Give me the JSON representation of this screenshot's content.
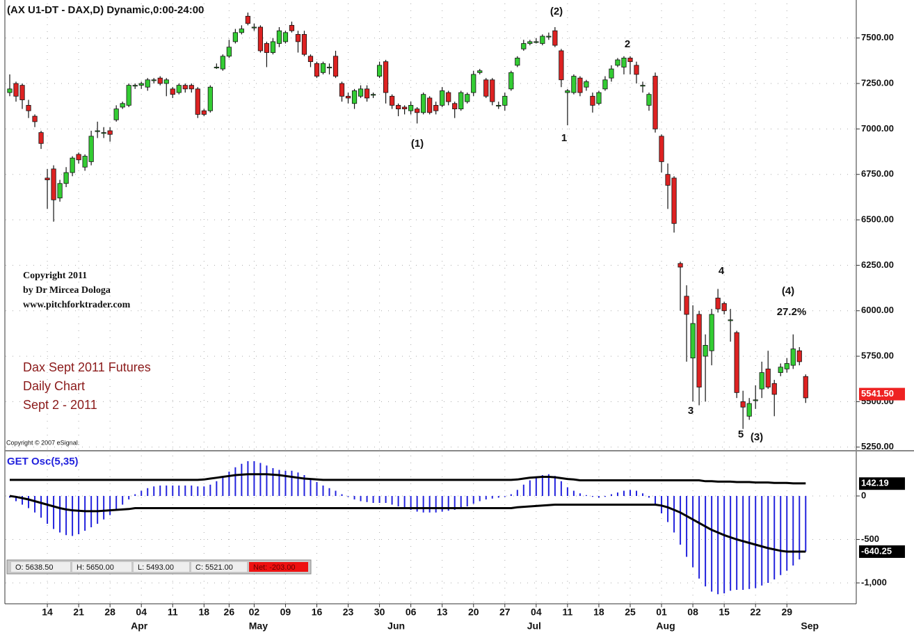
{
  "chart_data": [
    {
      "type": "candlestick",
      "title": "(AX U1-DT - DAX,D) Dynamic,0:00-24:00",
      "categories": [
        null,
        null,
        null,
        null,
        null,
        null,
        "14",
        null,
        null,
        null,
        null,
        "21",
        null,
        null,
        null,
        null,
        "28",
        null,
        null,
        null,
        null,
        "04",
        null,
        null,
        null,
        null,
        "11",
        null,
        null,
        null,
        null,
        "18",
        null,
        null,
        null,
        "26",
        null,
        null,
        null,
        "02",
        null,
        null,
        null,
        null,
        "09",
        null,
        null,
        null,
        null,
        "16",
        null,
        null,
        null,
        null,
        "23",
        null,
        null,
        null,
        null,
        "30",
        null,
        null,
        null,
        null,
        "06",
        null,
        null,
        null,
        null,
        "13",
        null,
        null,
        null,
        null,
        "20",
        null,
        null,
        null,
        null,
        "27",
        null,
        null,
        null,
        null,
        "04",
        null,
        null,
        null,
        null,
        "11",
        null,
        null,
        null,
        null,
        "18",
        null,
        null,
        null,
        null,
        "25",
        null,
        null,
        null,
        null,
        "01",
        null,
        null,
        null,
        null,
        "08",
        null,
        null,
        null,
        null,
        "15",
        null,
        null,
        null,
        null,
        "22",
        null,
        null,
        null,
        null,
        "29",
        null,
        null,
        null
      ],
      "months": [
        "Apr",
        "May",
        "Jun",
        "Jul",
        "Aug",
        "Sep"
      ],
      "open": [
        7200,
        7250,
        7240,
        7130,
        7070,
        6980,
        6730,
        6780,
        6620,
        6700,
        6760,
        6860,
        6790,
        6820,
        6990,
        6980,
        6990,
        7050,
        7120,
        7130,
        7240,
        7240,
        7230,
        7270,
        7280,
        7250,
        7220,
        7200,
        7240,
        7240,
        7220,
        7100,
        7100,
        7340,
        7330,
        7400,
        7480,
        7530,
        7620,
        7560,
        7560,
        7470,
        7420,
        7470,
        7480,
        7570,
        7520,
        7520,
        7400,
        7360,
        7310,
        7340,
        7400,
        7250,
        7180,
        7140,
        7180,
        7220,
        7190,
        7290,
        7370,
        7180,
        7130,
        7120,
        7100,
        7110,
        7090,
        7170,
        7130,
        7130,
        7200,
        7140,
        7110,
        7150,
        7200,
        7310,
        7270,
        7270,
        7130,
        7130,
        7220,
        7350,
        7440,
        7470,
        7480,
        7470,
        7510,
        7540,
        7430,
        7200,
        7200,
        7280,
        7230,
        7180,
        7140,
        7220,
        7280,
        7350,
        7340,
        7390,
        7350,
        7240,
        7130,
        7290,
        6960,
        6750,
        6730,
        6260,
        6080,
        5740,
        5980,
        5750,
        5780,
        6070,
        6040,
        5950,
        5880,
        5500,
        5420,
        5510,
        5570,
        5680,
        5600,
        5660,
        5680,
        5700,
        5780,
        5638.5
      ],
      "high": [
        7300,
        7260,
        7250,
        7160,
        7080,
        6990,
        6780,
        6800,
        6720,
        6790,
        6850,
        6870,
        6860,
        6990,
        7040,
        7010,
        7010,
        7130,
        7150,
        7250,
        7250,
        7260,
        7280,
        7280,
        7290,
        7280,
        7230,
        7250,
        7250,
        7250,
        7230,
        7110,
        7240,
        7360,
        7410,
        7490,
        7550,
        7570,
        7640,
        7580,
        7570,
        7480,
        7500,
        7560,
        7540,
        7590,
        7540,
        7540,
        7410,
        7370,
        7370,
        7360,
        7430,
        7260,
        7200,
        7220,
        7240,
        7240,
        7200,
        7370,
        7380,
        7190,
        7140,
        7130,
        7150,
        7120,
        7200,
        7180,
        7150,
        7230,
        7210,
        7150,
        7210,
        7200,
        7320,
        7330,
        7280,
        7280,
        7150,
        7200,
        7320,
        7400,
        7490,
        7490,
        7500,
        7520,
        7530,
        7560,
        7440,
        7220,
        7300,
        7290,
        7270,
        7200,
        7210,
        7290,
        7350,
        7390,
        7400,
        7400,
        7370,
        7260,
        7200,
        7310,
        6970,
        6810,
        6740,
        6270,
        6140,
        6030,
        6000,
        5870,
        6010,
        6120,
        6050,
        6010,
        5890,
        5560,
        5520,
        5590,
        5720,
        5780,
        5620,
        5710,
        5740,
        5870,
        5800,
        5650
      ],
      "low": [
        7180,
        7150,
        7110,
        7060,
        7010,
        6890,
        6560,
        6490,
        6600,
        6680,
        6740,
        6810,
        6770,
        6800,
        6950,
        6950,
        6930,
        7040,
        7110,
        7120,
        7220,
        7220,
        7210,
        7250,
        7240,
        7180,
        7170,
        7190,
        7200,
        7200,
        7060,
        7070,
        7090,
        7330,
        7320,
        7390,
        7470,
        7520,
        7570,
        7540,
        7420,
        7340,
        7410,
        7450,
        7470,
        7530,
        7420,
        7400,
        7340,
        7280,
        7300,
        7300,
        7280,
        7150,
        7140,
        7110,
        7170,
        7150,
        7170,
        7280,
        7140,
        7110,
        7070,
        7080,
        7080,
        7030,
        7080,
        7080,
        7080,
        7120,
        7130,
        7060,
        7100,
        7140,
        7180,
        7300,
        7170,
        7130,
        7110,
        7100,
        7210,
        7340,
        7430,
        7460,
        7470,
        7460,
        7490,
        7450,
        7230,
        7020,
        7190,
        7180,
        7210,
        7090,
        7130,
        7210,
        7260,
        7340,
        7300,
        7300,
        7250,
        7200,
        7100,
        6980,
        6760,
        6560,
        6430,
        6000,
        5720,
        5500,
        5480,
        5500,
        5700,
        5990,
        5980,
        5830,
        5520,
        5350,
        5400,
        5460,
        5520,
        5570,
        5420,
        5640,
        5660,
        5680,
        5700,
        5493
      ],
      "close": [
        7220,
        7180,
        7160,
        7100,
        7040,
        6920,
        6720,
        6610,
        6700,
        6760,
        6840,
        6830,
        6850,
        6960,
        6990,
        6980,
        6970,
        7110,
        7140,
        7240,
        7240,
        7250,
        7270,
        7270,
        7250,
        7270,
        7190,
        7240,
        7220,
        7220,
        7080,
        7080,
        7230,
        7340,
        7400,
        7450,
        7530,
        7550,
        7580,
        7560,
        7430,
        7420,
        7480,
        7540,
        7530,
        7540,
        7480,
        7410,
        7370,
        7290,
        7360,
        7340,
        7290,
        7180,
        7170,
        7210,
        7220,
        7170,
        7190,
        7350,
        7200,
        7130,
        7110,
        7110,
        7130,
        7090,
        7190,
        7090,
        7100,
        7210,
        7150,
        7110,
        7200,
        7190,
        7300,
        7320,
        7180,
        7150,
        7130,
        7180,
        7310,
        7390,
        7470,
        7480,
        7480,
        7510,
        7510,
        7460,
        7270,
        7210,
        7290,
        7200,
        7260,
        7130,
        7200,
        7270,
        7330,
        7380,
        7390,
        7370,
        7300,
        7240,
        7190,
        7000,
        6820,
        6690,
        6480,
        6240,
        5980,
        5930,
        5580,
        5810,
        5980,
        6010,
        6000,
        5950,
        5550,
        5470,
        5490,
        5510,
        5660,
        5580,
        5540,
        5690,
        5710,
        5790,
        5720,
        5521
      ],
      "up_color": "#33cc33",
      "down_color": "#dd2222",
      "ylim": [
        5230,
        7690
      ],
      "yticks": [
        {
          "value": 7500,
          "label": "7500.00"
        },
        {
          "value": 7250,
          "label": "7250.00"
        },
        {
          "value": 7000,
          "label": "7000.00"
        },
        {
          "value": 6750,
          "label": "6750.00"
        },
        {
          "value": 6500,
          "label": "6500.00"
        },
        {
          "value": 6250,
          "label": "6250.00"
        },
        {
          "value": 6000,
          "label": "6000.00"
        },
        {
          "value": 5750,
          "label": "5750.00"
        },
        {
          "value": 5500,
          "label": "5500.00"
        },
        {
          "value": 5250,
          "label": "5250.00"
        }
      ],
      "grid": true,
      "last_tag": {
        "value": 5541.5,
        "label": "5541.50",
        "color": "#ee2222"
      },
      "annotations": [
        "(2)",
        "2",
        "1",
        "(1)",
        "4",
        "(4)",
        "27.2%",
        "3",
        "5",
        "(3)"
      ]
    },
    {
      "type": "bar",
      "title": "GET Osc(5,35)",
      "values": [
        -20,
        -60,
        -100,
        -140,
        -190,
        -250,
        -320,
        -380,
        -420,
        -450,
        -460,
        -440,
        -400,
        -360,
        -320,
        -270,
        -220,
        -160,
        -100,
        -40,
        20,
        60,
        90,
        110,
        120,
        120,
        120,
        120,
        120,
        120,
        110,
        110,
        130,
        170,
        220,
        280,
        330,
        370,
        400,
        400,
        380,
        350,
        320,
        300,
        290,
        290,
        270,
        240,
        200,
        160,
        120,
        90,
        60,
        20,
        -10,
        -40,
        -60,
        -70,
        -80,
        -80,
        -80,
        -100,
        -120,
        -140,
        -160,
        -180,
        -190,
        -190,
        -190,
        -180,
        -170,
        -160,
        -140,
        -120,
        -90,
        -60,
        -40,
        -30,
        -20,
        -10,
        20,
        70,
        130,
        180,
        210,
        240,
        250,
        230,
        170,
        100,
        60,
        30,
        10,
        -10,
        -20,
        -10,
        20,
        40,
        60,
        70,
        60,
        30,
        -20,
        -100,
        -200,
        -300,
        -420,
        -560,
        -700,
        -820,
        -950,
        -1040,
        -1100,
        -1130,
        -1120,
        -1090,
        -1080,
        -1080,
        -1070,
        -1060,
        -1030,
        -1000,
        -960,
        -910,
        -860,
        -800,
        -730,
        -640
      ],
      "color": "#2222dd",
      "series": [
        {
          "color": "#000000",
          "values": [
            185,
            185,
            185,
            185,
            185,
            185,
            185,
            185,
            185,
            185,
            185,
            185,
            185,
            185,
            185,
            185,
            185,
            185,
            185,
            185,
            185,
            185,
            185,
            185,
            185,
            185,
            185,
            185,
            185,
            185,
            185,
            190,
            200,
            210,
            220,
            230,
            240,
            245,
            250,
            250,
            250,
            250,
            245,
            240,
            230,
            220,
            210,
            200,
            195,
            190,
            185,
            185,
            185,
            185,
            185,
            185,
            185,
            185,
            185,
            185,
            185,
            185,
            185,
            185,
            185,
            185,
            185,
            185,
            185,
            185,
            185,
            185,
            185,
            185,
            185,
            185,
            185,
            185,
            185,
            185,
            185,
            190,
            200,
            210,
            215,
            220,
            220,
            215,
            205,
            195,
            190,
            180,
            180,
            180,
            180,
            180,
            180,
            180,
            180,
            180,
            180,
            180,
            180,
            180,
            180,
            180,
            180,
            180,
            180,
            180,
            180,
            170,
            170,
            165,
            165,
            165,
            160,
            160,
            160,
            155,
            155,
            155,
            150,
            150,
            150,
            145,
            145,
            145
          ]
        },
        {
          "color": "#000000",
          "values": [
            0,
            -10,
            -25,
            -40,
            -60,
            -80,
            -100,
            -120,
            -140,
            -155,
            -165,
            -170,
            -175,
            -175,
            -175,
            -170,
            -165,
            -160,
            -155,
            -150,
            -140,
            -140,
            -140,
            -140,
            -140,
            -140,
            -140,
            -140,
            -140,
            -140,
            -140,
            -140,
            -140,
            -140,
            -140,
            -140,
            -140,
            -140,
            -140,
            -140,
            -140,
            -140,
            -140,
            -140,
            -140,
            -140,
            -140,
            -140,
            -140,
            -140,
            -140,
            -140,
            -140,
            -140,
            -140,
            -140,
            -140,
            -140,
            -140,
            -140,
            -140,
            -140,
            -140,
            -140,
            -140,
            -140,
            -140,
            -140,
            -140,
            -140,
            -140,
            -140,
            -140,
            -140,
            -140,
            -140,
            -140,
            -140,
            -140,
            -140,
            -140,
            -130,
            -125,
            -120,
            -115,
            -110,
            -105,
            -100,
            -100,
            -100,
            -100,
            -100,
            -100,
            -100,
            -100,
            -100,
            -100,
            -100,
            -100,
            -100,
            -100,
            -100,
            -100,
            -100,
            -110,
            -130,
            -160,
            -190,
            -230,
            -270,
            -310,
            -350,
            -390,
            -420,
            -450,
            -475,
            -500,
            -520,
            -540,
            -560,
            -580,
            -600,
            -615,
            -630,
            -640,
            -640,
            -640,
            -640
          ]
        }
      ],
      "ylim": [
        -1240,
        504
      ],
      "yticks": [
        0,
        -500,
        {
          "value": -1000,
          "label": "-1,000"
        }
      ],
      "tags": [
        {
          "value": 142.19,
          "label": "142.19"
        },
        {
          "value": -640.25,
          "label": "-640.25"
        }
      ]
    }
  ],
  "copyright_note": [
    "Copyright 2011",
    "by Dr Mircea Dologa",
    "www.pitchforktrader.com"
  ],
  "caption": [
    "Dax Sept 2011 Futures",
    "Daily Chart",
    "Sept 2 - 2011"
  ],
  "footer": "Copyright © 2007 eSignal.",
  "status_bar": [
    "O: 5638.50",
    "H: 5650.00",
    "L: 5493.00",
    "C: 5521.00",
    "Net: -203.00"
  ]
}
